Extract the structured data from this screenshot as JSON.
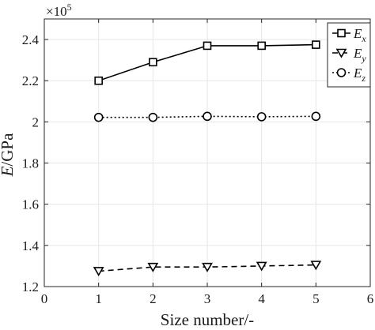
{
  "chart_data": {
    "type": "line",
    "xlabel": "Size number/-",
    "ylabel": "E/GPa",
    "ylabel_main": "E",
    "ylabel_unit": "/GPa",
    "y_multiplier_base": "×10",
    "y_multiplier_exp": "5",
    "xlim": [
      0,
      6
    ],
    "ylim": [
      1.2,
      2.5
    ],
    "xticks": [
      0,
      1,
      2,
      3,
      4,
      5,
      6
    ],
    "yticks": [
      1.2,
      1.4,
      1.6,
      1.8,
      2.0,
      2.2,
      2.4
    ],
    "ytick_labels": [
      "1.2",
      "1.4",
      "1.6",
      "1.8",
      "2",
      "2.2",
      "2.4"
    ],
    "grid": true,
    "legend_position": "top-right",
    "x": [
      1,
      2,
      3,
      4,
      5
    ],
    "series": [
      {
        "name": "E_x",
        "label_main": "E",
        "label_sub": "x",
        "marker": "square",
        "line": "solid",
        "color": "#000000",
        "values": [
          2.2,
          2.29,
          2.37,
          2.37,
          2.375
        ]
      },
      {
        "name": "E_y",
        "label_main": "E",
        "label_sub": "y",
        "marker": "triangle-down",
        "line": "dashed",
        "color": "#000000",
        "values": [
          1.275,
          1.295,
          1.295,
          1.3,
          1.305
        ]
      },
      {
        "name": "E_z",
        "label_main": "E",
        "label_sub": "z",
        "marker": "circle",
        "line": "dotted",
        "color": "#000000",
        "values": [
          2.022,
          2.022,
          2.027,
          2.025,
          2.027
        ]
      }
    ]
  }
}
